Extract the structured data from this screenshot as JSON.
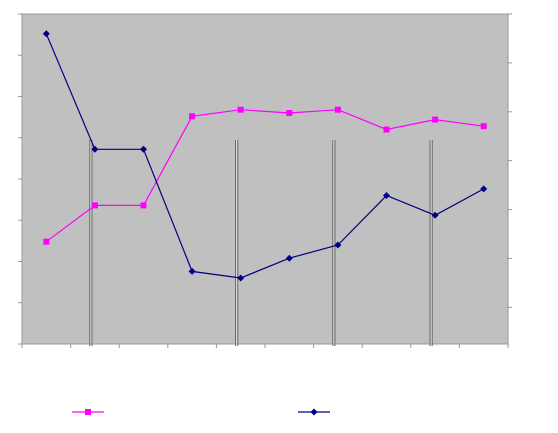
{
  "chart_data": {
    "type": "line",
    "title": "",
    "xlabel": "",
    "ylabel_left": "",
    "ylabel_right": "",
    "x": [
      1,
      2,
      3,
      4,
      5,
      6,
      7,
      8,
      9,
      10
    ],
    "vertical_markers_at_x": [
      2,
      5,
      7,
      9
    ],
    "grid": false,
    "background": "#C0C0C0",
    "legend": {
      "placement": "bottom",
      "entries": []
    },
    "series": [
      {
        "color": "#FF00FF",
        "marker": "square",
        "axis": "left",
        "values": [
          0.31,
          0.42,
          0.42,
          0.69,
          0.71,
          0.7,
          0.71,
          0.65,
          0.68,
          0.66
        ]
      },
      {
        "color": "#000080",
        "marker": "diamond",
        "axis": "left",
        "values": [
          0.94,
          0.59,
          0.59,
          0.22,
          0.2,
          0.26,
          0.3,
          0.45,
          0.39,
          0.47
        ]
      }
    ],
    "ylim": [
      0,
      1
    ]
  }
}
